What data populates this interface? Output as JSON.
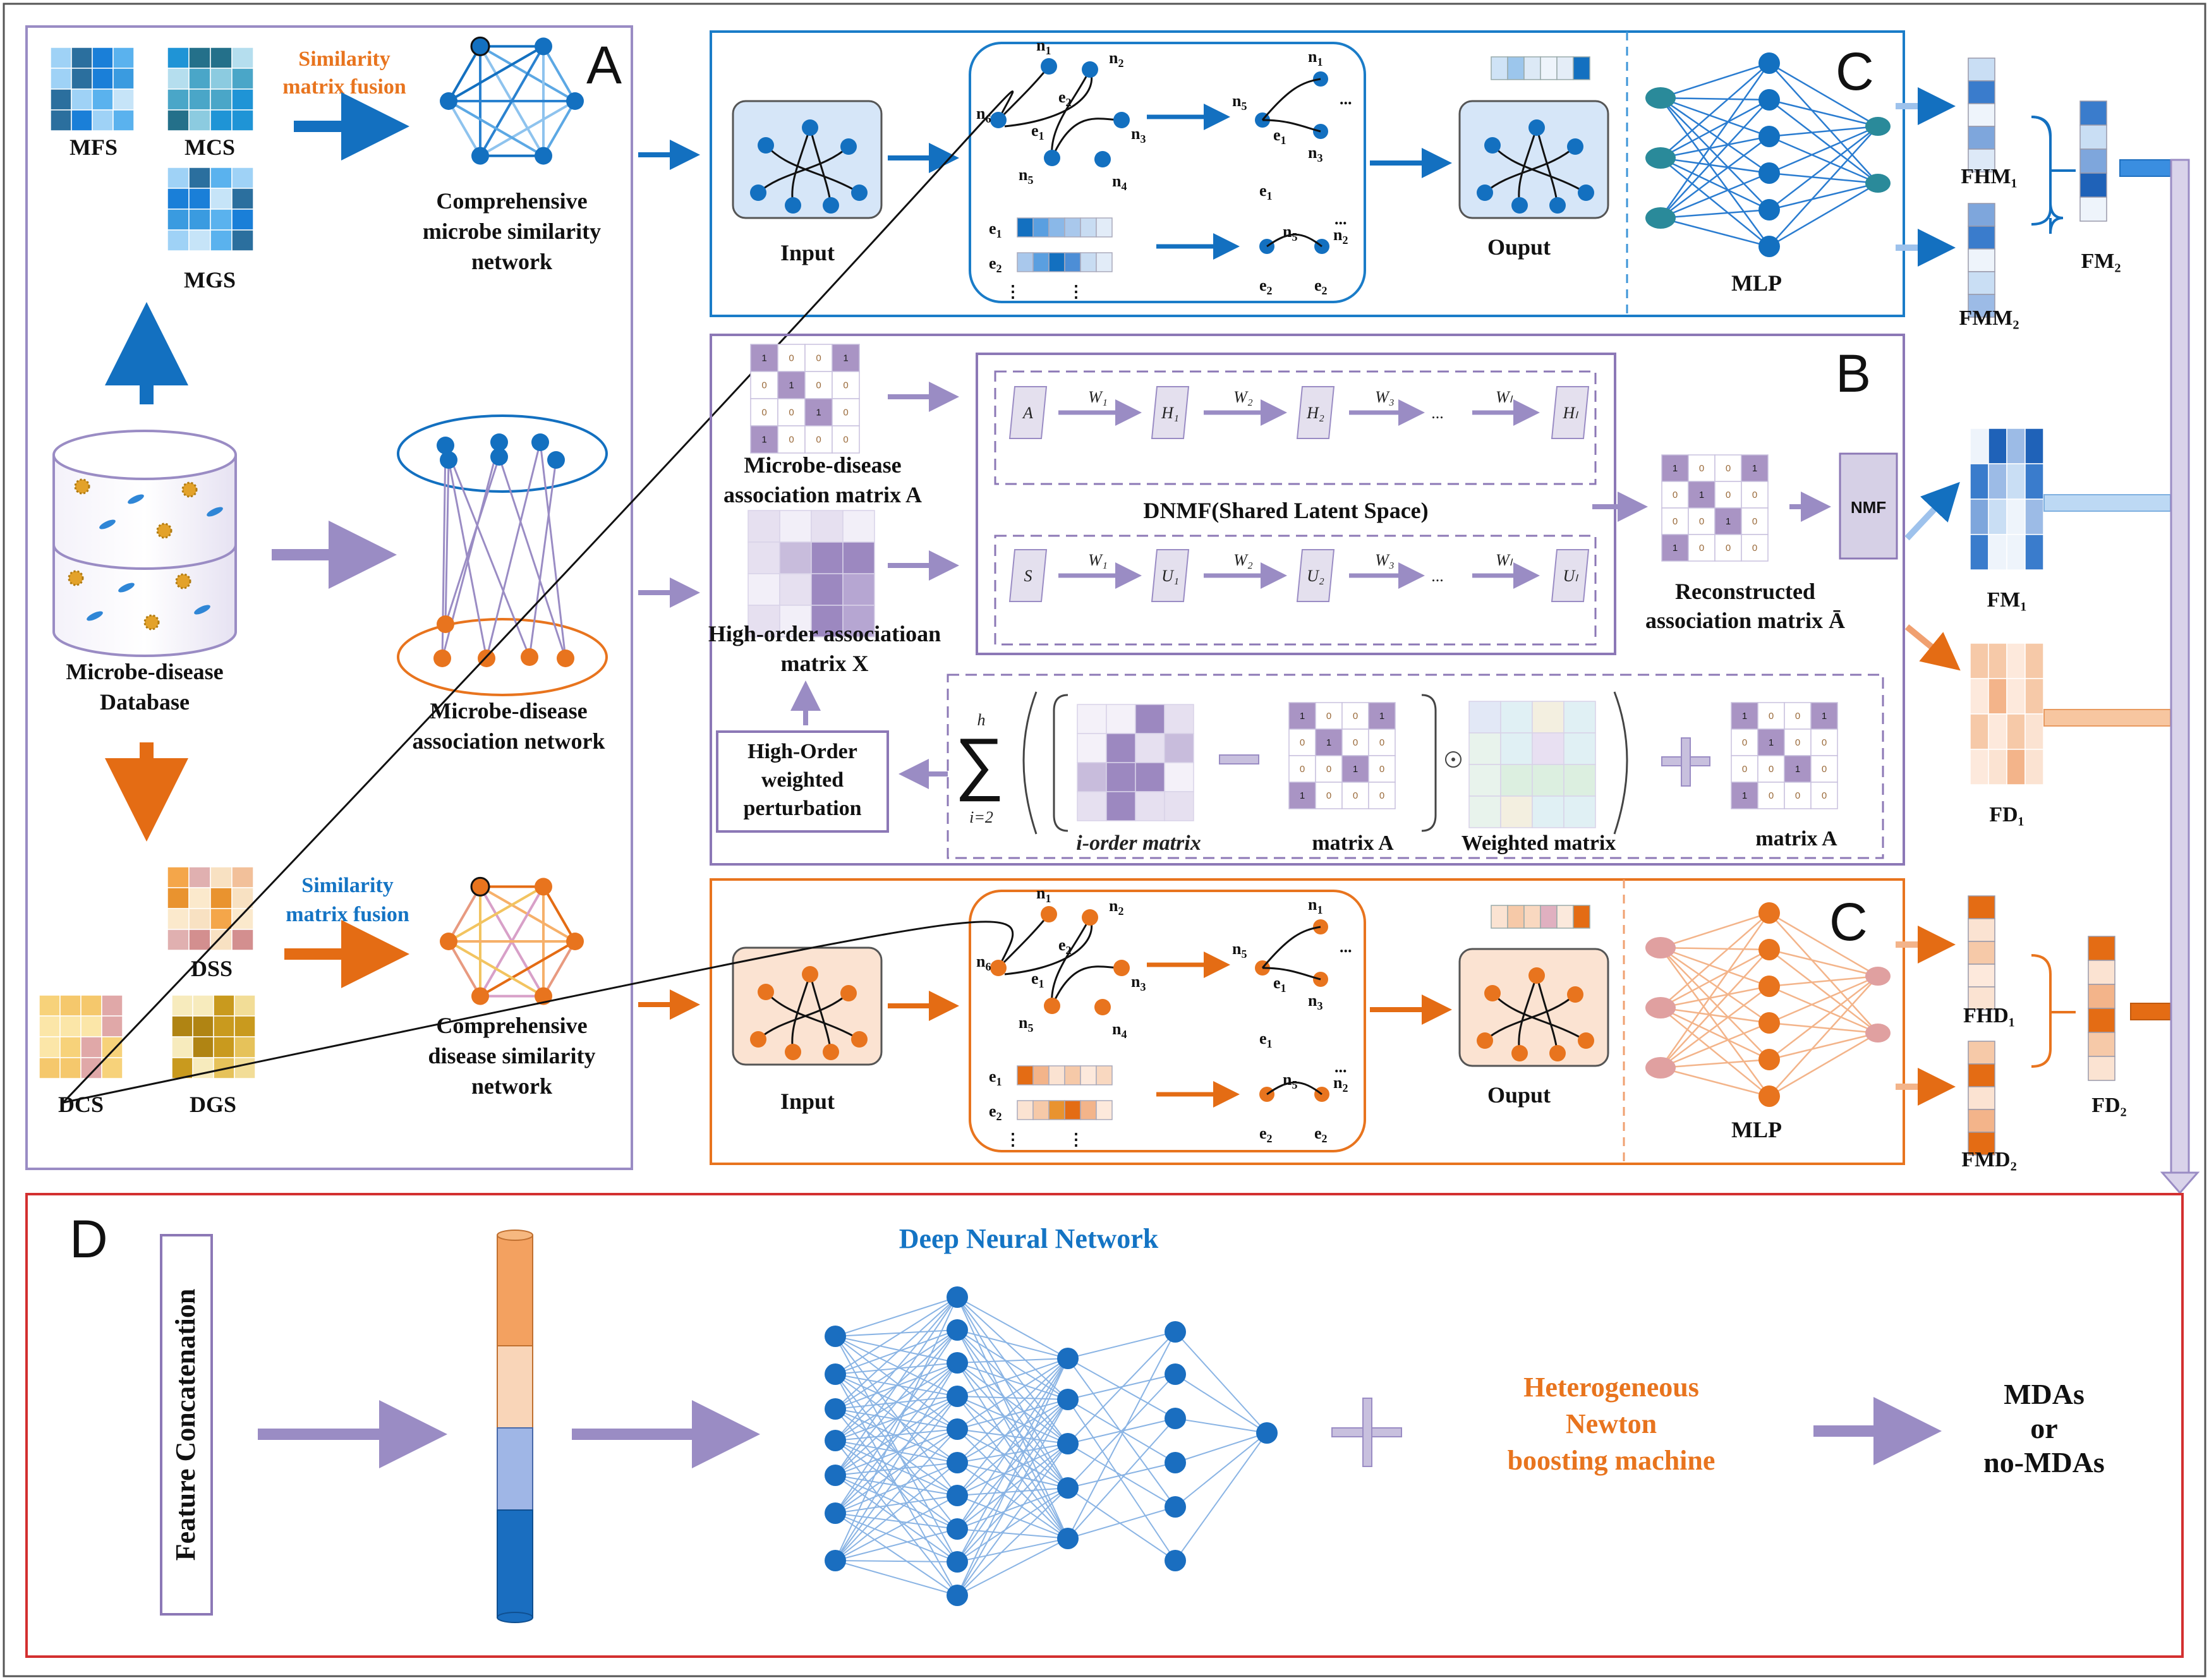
{
  "panel_a": {
    "letter": "A",
    "mfs": "MFS",
    "mcs": "MCS",
    "mgs": "MGS",
    "fusion_top": [
      "Similarity",
      "matrix fusion"
    ],
    "microbe_net": [
      "Comprehensive",
      "microbe similarity",
      "network"
    ],
    "database": [
      "Microbe-disease",
      "Database"
    ],
    "assoc_net": [
      "Microbe-disease",
      "association network"
    ],
    "dss": "DSS",
    "dcs": "DCS",
    "dgs": "DGS",
    "fusion_bottom": [
      "Similarity",
      "matrix fusion"
    ],
    "disease_net": [
      "Comprehensive",
      "disease similarity",
      "network"
    ]
  },
  "panel_c": {
    "letter": "C",
    "input": "Input",
    "output": "Ouput",
    "mlp": "MLP",
    "nodes": [
      "n1",
      "n2",
      "n3",
      "n4",
      "n5",
      "n6"
    ],
    "edges": [
      "e1",
      "e2"
    ],
    "ellipsis": "...",
    "vdots": "⋮",
    "fhm1": "FHM₁",
    "fmm2": "FMM₂",
    "fm2": "FM₂",
    "fhd1": "FHD₁",
    "fmd2": "FMD₂",
    "fd2": "FD₂"
  },
  "panel_b": {
    "letter": "B",
    "assoc_matrix": [
      "Microbe-disease",
      "association matrix A"
    ],
    "high_order": [
      "High-order  associatioan",
      "matrix X"
    ],
    "dnmf": "DNMF(Shared Latent Space)",
    "w1": "W₁",
    "w2": "W₂",
    "w3": "W₃",
    "wl": "Wₗ",
    "a": "A",
    "h1": "H₁",
    "h2": "H₂",
    "hl": "Hₗ",
    "s": "S",
    "u1": "U₁",
    "u2": "U₂",
    "ul": "Uₗ",
    "reconstructed": [
      "Reconstructed",
      "association matrix Ā"
    ],
    "nmf": "NMF",
    "perturbation": [
      "High-Order",
      "weighted",
      "perturbation"
    ],
    "sum_upper": "h",
    "sum_lower": "i=2",
    "i_order": "i-order matrix",
    "matrix_a": "matrix A",
    "weighted": "Weighted matrix",
    "matrix_a2": "matrix A",
    "fm1": "FM₁",
    "fd1": "FD₁",
    "binary_matrix": [
      [
        "1",
        "0",
        "0",
        "1"
      ],
      [
        "0",
        "1",
        "0",
        "0"
      ],
      [
        "0",
        "0",
        "1",
        "0"
      ],
      [
        "1",
        "0",
        "0",
        "0"
      ]
    ]
  },
  "panel_d": {
    "letter": "D",
    "feature_concat": "Feature Concatenation",
    "dnn": "Deep Neural Network",
    "boost": [
      "Heterogeneous",
      "Newton",
      "boosting machine"
    ],
    "result": [
      "MDAs",
      "or",
      "no-MDAs"
    ]
  },
  "colors": {
    "blue": "#1370c0",
    "orange": "#e8741e",
    "purple": "#8c78b6",
    "red_border": "#d33030"
  }
}
